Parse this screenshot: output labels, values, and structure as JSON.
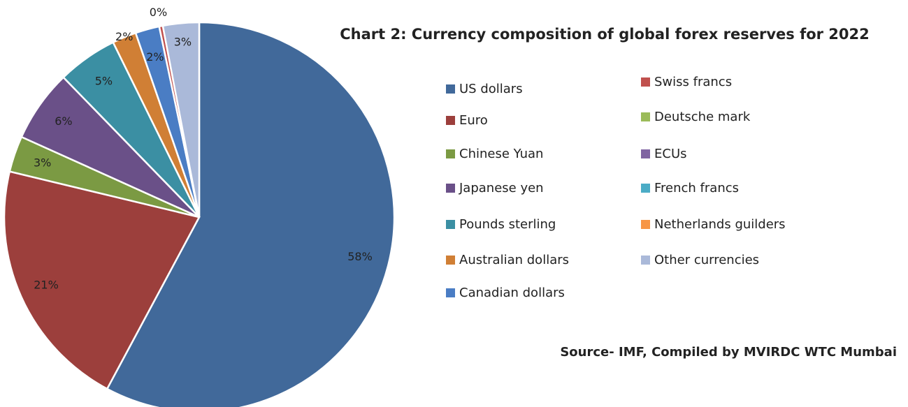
{
  "chart_data": {
    "type": "pie",
    "title": "Chart 2: Currency composition of global forex reserves for 2022",
    "source": "Source- IMF, Compiled by MVIRDC WTC Mumbai",
    "categories": [
      "US dollars",
      "Euro",
      "Chinese Yuan",
      "Japanese yen",
      "Pounds sterling",
      "Australian dollars",
      "Canadian dollars",
      "Swiss francs",
      "Deutsche mark",
      "ECUs",
      "French francs",
      "Netherlands guilders",
      "Other currencies"
    ],
    "values": [
      58,
      21,
      3,
      6,
      5,
      2,
      2,
      0.3,
      0,
      0,
      0,
      0,
      3
    ],
    "value_labels": [
      "58%",
      "21%",
      "3%",
      "6%",
      "5%",
      "2%",
      "2%",
      "0%",
      null,
      null,
      null,
      null,
      "3%"
    ],
    "colors": [
      "#41699a",
      "#9c3f3c",
      "#7b9a43",
      "#6a5088",
      "#3b8fa3",
      "#d07f35",
      "#4a7dc4",
      "#c0504d",
      "#9bbb59",
      "#8064a2",
      "#4bacc6",
      "#f79646",
      "#aab9d9"
    ],
    "legend": "right"
  }
}
